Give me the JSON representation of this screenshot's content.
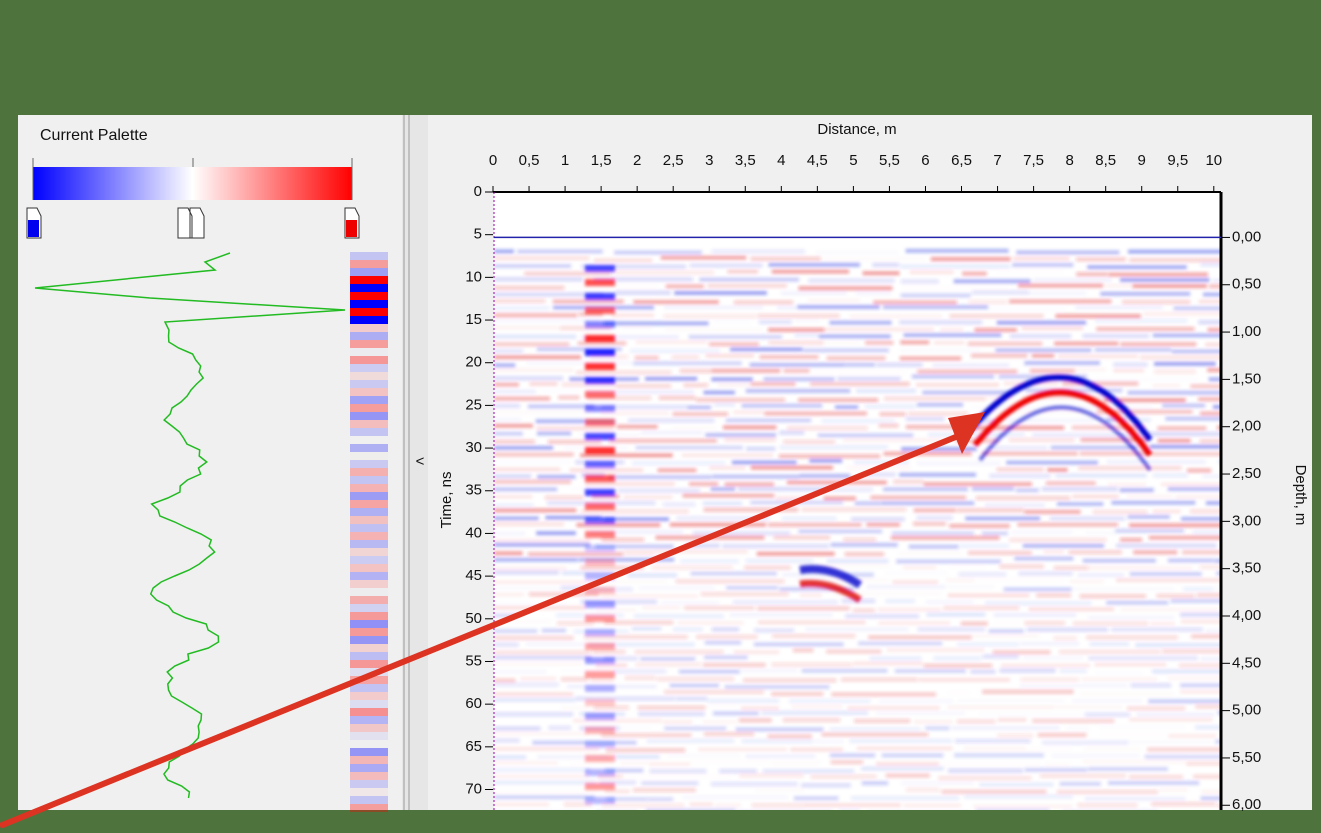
{
  "palette": {
    "title": "Current Palette"
  },
  "splitter": {
    "label": "<"
  },
  "radargram": {
    "x_axis": {
      "title": "Distance, m",
      "range": [
        0,
        10.1
      ],
      "ticks": [
        0,
        {
          "value": 0.5,
          "label": "0,5"
        },
        1,
        {
          "value": 1.5,
          "label": "1,5"
        },
        2,
        {
          "value": 2.5,
          "label": "2,5"
        },
        3,
        {
          "value": 3.5,
          "label": "3,5"
        },
        4,
        {
          "value": 4.5,
          "label": "4,5"
        },
        5,
        {
          "value": 5.5,
          "label": "5,5"
        },
        6,
        {
          "value": 6.5,
          "label": "6,5"
        },
        7,
        {
          "value": 7.5,
          "label": "7,5"
        },
        8,
        {
          "value": 8.5,
          "label": "8,5"
        },
        9,
        {
          "value": 9.5,
          "label": "9,5"
        },
        10
      ]
    },
    "time_axis": {
      "title": "Time, ns",
      "range": [
        0,
        72.4
      ],
      "ticks": [
        0,
        5,
        10,
        15,
        20,
        25,
        30,
        35,
        40,
        45,
        50,
        55,
        60,
        65,
        70
      ]
    },
    "depth_axis": {
      "title": "Depth, m",
      "range": [
        -0.48,
        6.05
      ],
      "ticks": [
        {
          "value": 0,
          "label": "0,00"
        },
        {
          "value": 0.5,
          "label": "0,50"
        },
        {
          "value": 1,
          "label": "1,00"
        },
        {
          "value": 1.5,
          "label": "1,50"
        },
        {
          "value": 2,
          "label": "2,00"
        },
        {
          "value": 2.5,
          "label": "2,50"
        },
        {
          "value": 3,
          "label": "3,00"
        },
        {
          "value": 3.5,
          "label": "3,50"
        },
        {
          "value": 4,
          "label": "4,00"
        },
        {
          "value": 4.5,
          "label": "4,50"
        },
        {
          "value": 5,
          "label": "5,00"
        },
        {
          "value": 5.5,
          "label": "5,50"
        },
        {
          "value": 6,
          "label": "6,00"
        }
      ]
    }
  }
}
